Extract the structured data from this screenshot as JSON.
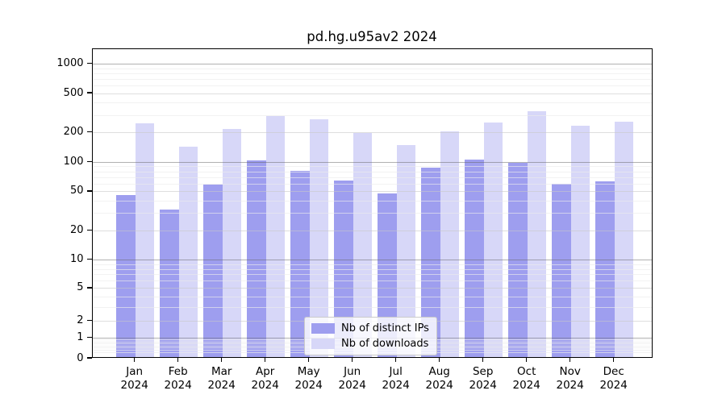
{
  "chart_data": {
    "type": "bar",
    "title": "pd.hg.u95av2 2024",
    "year": "2024",
    "categories": [
      "Jan",
      "Feb",
      "Mar",
      "Apr",
      "May",
      "Jun",
      "Jul",
      "Aug",
      "Sep",
      "Oct",
      "Nov",
      "Dec"
    ],
    "series": [
      {
        "name": "Nb of distinct IPs",
        "color": "#9e9eef",
        "values": [
          45,
          32,
          57,
          100,
          79,
          63,
          46,
          85,
          102,
          96,
          58,
          62
        ]
      },
      {
        "name": "Nb of downloads",
        "color": "#d7d7f8",
        "values": [
          240,
          140,
          210,
          285,
          265,
          190,
          145,
          200,
          245,
          320,
          225,
          250
        ]
      }
    ],
    "yticks": [
      0,
      1,
      2,
      5,
      10,
      20,
      50,
      100,
      200,
      500,
      1000
    ],
    "ylim": [
      0,
      1400
    ],
    "yscale": "pseudo-log (asinh)",
    "grid": "on",
    "legend_position": "lower center"
  },
  "legend": {
    "items": [
      {
        "label": "Nb of distinct IPs"
      },
      {
        "label": "Nb of downloads"
      }
    ]
  }
}
